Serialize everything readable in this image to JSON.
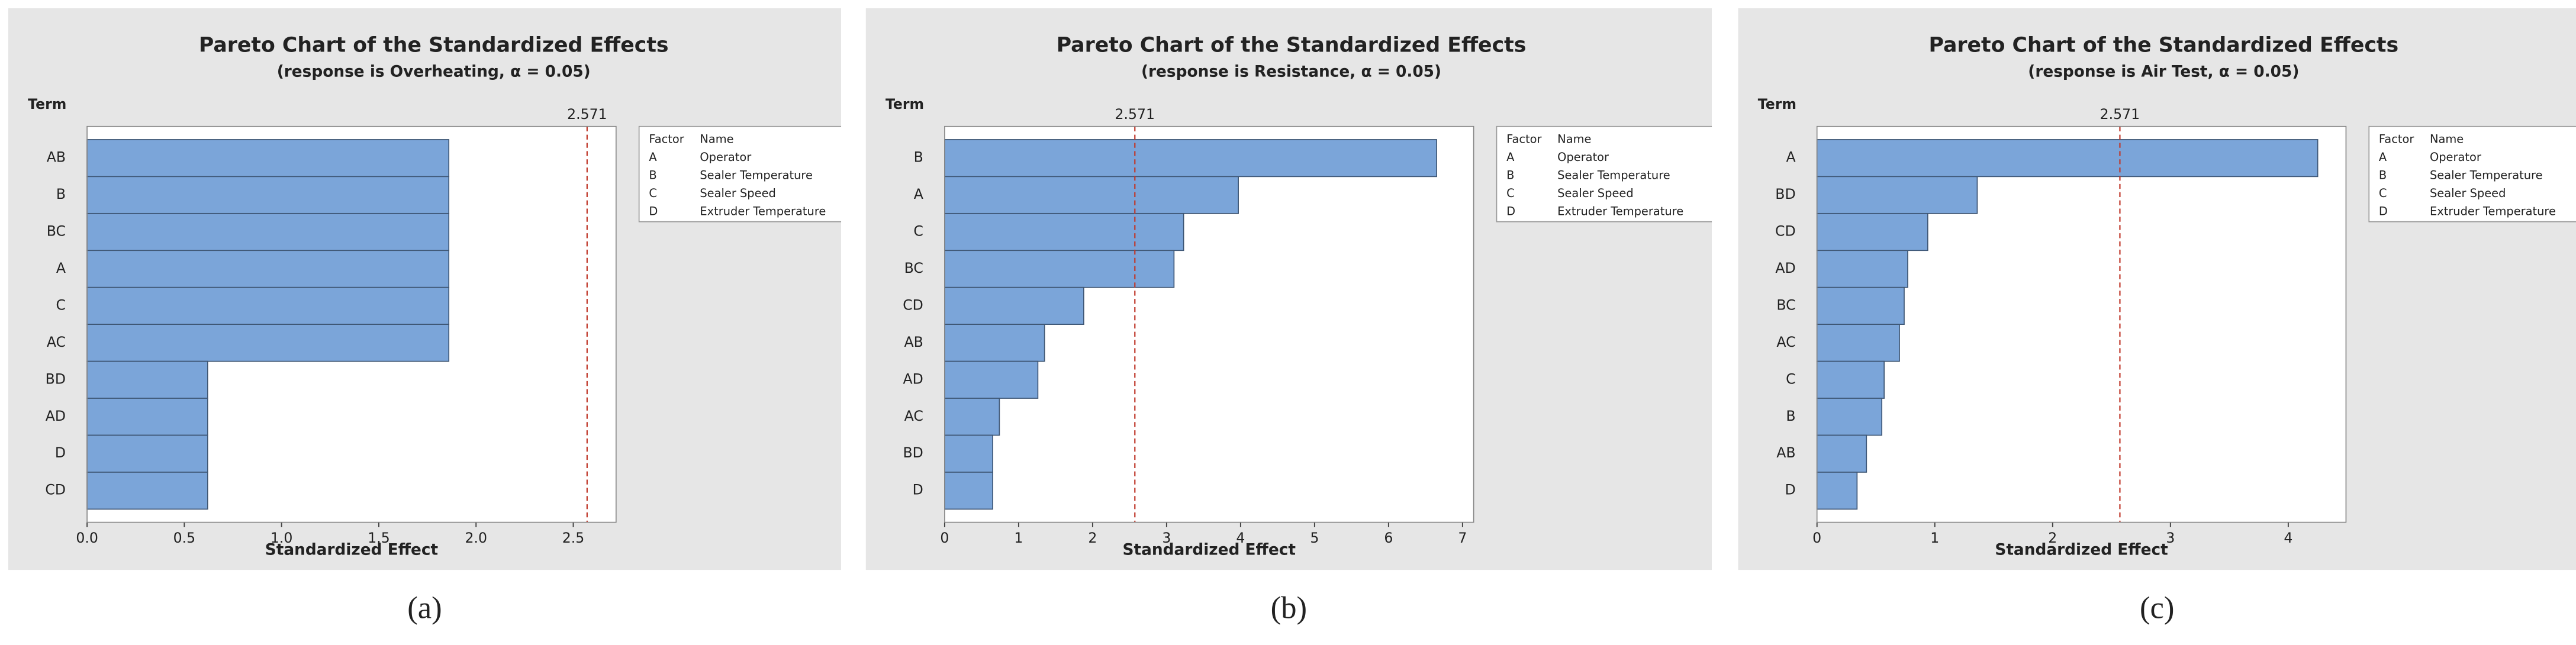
{
  "chart_data": [
    {
      "type": "bar",
      "title": "Pareto Chart of the Standardized Effects",
      "subtitle": "(response is Overheating, α = 0.05)",
      "ylabel": "Term",
      "xlabel": "Standardized Effect",
      "categories": [
        "AB",
        "B",
        "BC",
        "A",
        "C",
        "AC",
        "BD",
        "AD",
        "D",
        "CD"
      ],
      "values": [
        1.86,
        1.86,
        1.86,
        1.86,
        1.86,
        1.86,
        0.62,
        0.62,
        0.62,
        0.62
      ],
      "color": "#7ba5d9",
      "xlim": [
        0,
        2.72
      ],
      "xticks": [
        {
          "value": 0,
          "label": "0.0"
        },
        0.5,
        {
          "value": 1,
          "label": "1.0"
        },
        1.5,
        {
          "value": 2,
          "label": "2.0"
        },
        2.5
      ],
      "ref_line": 2.571,
      "ref_color": "#c0392b",
      "legend": {
        "headers": [
          "Factor",
          "Name"
        ],
        "rows": [
          [
            "A",
            "Operator"
          ],
          [
            "B",
            "Sealer Temperature"
          ],
          [
            "C",
            "Sealer Speed"
          ],
          [
            "D",
            "Extruder Temperature"
          ]
        ]
      },
      "caption": "(a)"
    },
    {
      "type": "bar",
      "title": "Pareto Chart of the Standardized Effects",
      "subtitle": "(response is Resistance, α = 0.05)",
      "ylabel": "Term",
      "xlabel": "Standardized Effect",
      "categories": [
        "B",
        "A",
        "C",
        "BC",
        "CD",
        "AB",
        "AD",
        "AC",
        "BD",
        "D"
      ],
      "values": [
        6.65,
        3.97,
        3.23,
        3.1,
        1.88,
        1.35,
        1.26,
        0.74,
        0.65,
        0.65
      ],
      "color": "#7ba5d9",
      "xlim": [
        0,
        7.15
      ],
      "xticks": [
        0,
        1,
        2,
        3,
        4,
        5,
        6,
        7
      ],
      "ref_line": 2.571,
      "ref_color": "#c0392b",
      "legend": {
        "headers": [
          "Factor",
          "Name"
        ],
        "rows": [
          [
            "A",
            "Operator"
          ],
          [
            "B",
            "Sealer Temperature"
          ],
          [
            "C",
            "Sealer Speed"
          ],
          [
            "D",
            "Extruder Temperature"
          ]
        ]
      },
      "caption": "(b)"
    },
    {
      "type": "bar",
      "title": "Pareto Chart of the Standardized Effects",
      "subtitle": "(response is Air Test, α = 0.05)",
      "ylabel": "Term",
      "xlabel": "Standardized Effect",
      "categories": [
        "A",
        "BD",
        "CD",
        "AD",
        "BC",
        "AC",
        "C",
        "B",
        "AB",
        "D"
      ],
      "values": [
        4.25,
        1.36,
        0.94,
        0.77,
        0.74,
        0.7,
        0.57,
        0.55,
        0.42,
        0.34
      ],
      "color": "#7ba5d9",
      "xlim": [
        0,
        4.49
      ],
      "xticks": [
        0,
        1,
        2,
        3,
        4
      ],
      "ref_line": 2.571,
      "ref_color": "#c0392b",
      "legend": {
        "headers": [
          "Factor",
          "Name"
        ],
        "rows": [
          [
            "A",
            "Operator"
          ],
          [
            "B",
            "Sealer Temperature"
          ],
          [
            "C",
            "Sealer Speed"
          ],
          [
            "D",
            "Extruder Temperature"
          ]
        ]
      },
      "caption": "(c)"
    }
  ]
}
